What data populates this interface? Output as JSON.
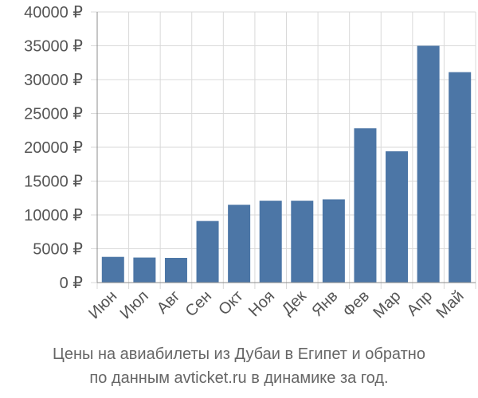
{
  "chart_data": {
    "type": "bar",
    "categories": [
      "Июн",
      "Июл",
      "Авг",
      "Сен",
      "Окт",
      "Ноя",
      "Дек",
      "Янв",
      "Фев",
      "Мар",
      "Апр",
      "Май"
    ],
    "values": [
      3800,
      3700,
      3650,
      9100,
      11500,
      12100,
      12100,
      12300,
      22800,
      19400,
      35000,
      31100
    ],
    "yticks": [
      "0 ₽",
      "5000 ₽",
      "10000 ₽",
      "15000 ₽",
      "20000 ₽",
      "25000 ₽",
      "30000 ₽",
      "35000 ₽",
      "40000 ₽"
    ],
    "ylim": [
      0,
      40000
    ],
    "grid": true,
    "bar_color": "#4c76a6",
    "title": ""
  },
  "caption": {
    "line1": "Цены на авиабилеты из Дубаи в Египет и обратно",
    "line2": "по данным avticket.ru в динамике за год."
  }
}
